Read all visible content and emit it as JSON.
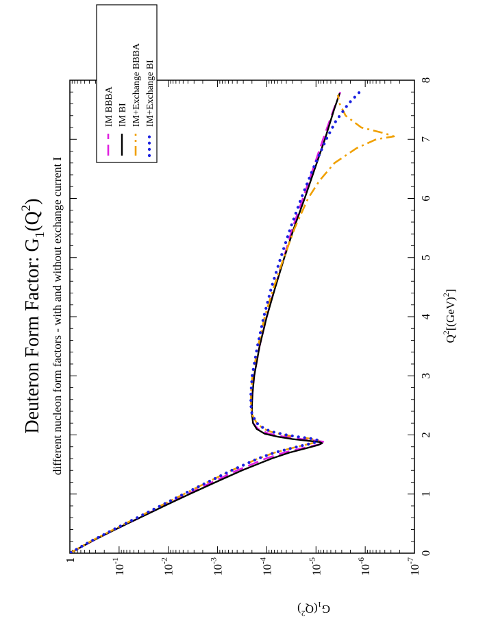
{
  "chart_data": {
    "type": "line",
    "orientation": "rotated-90-ccw",
    "title": "Deuteron Form Factor: G",
    "title_sub": "1",
    "title_tail": "(Q",
    "title_sup": "2",
    "title_end": ")",
    "subtitle": "different nucleon form factors - with and without exchange current I",
    "xlabel": "Q",
    "xlabel_sup": "2",
    "xlabel_tail": "[(GeV)",
    "xlabel_sup2": "2",
    "xlabel_end": "]",
    "ylabel": "G",
    "ylabel_sub": "1",
    "ylabel_tail": "(Q",
    "ylabel_sup": "2",
    "ylabel_end": ")",
    "xlim": [
      0,
      8
    ],
    "ylim": [
      1e-07,
      1
    ],
    "yscale": "log",
    "x_ticks": [
      0,
      1,
      2,
      3,
      4,
      5,
      6,
      7,
      8
    ],
    "x_tick_labels": [
      "0",
      "1",
      "2",
      "3",
      "4",
      "5",
      "6",
      "7",
      "8"
    ],
    "y_ticks": [
      {
        "value": 1e-07,
        "base": "10",
        "exp": "-7"
      },
      {
        "value": 1e-06,
        "base": "10",
        "exp": "-6"
      },
      {
        "value": 1e-05,
        "base": "10",
        "exp": "-5"
      },
      {
        "value": 0.0001,
        "base": "10",
        "exp": "-4"
      },
      {
        "value": 0.001,
        "base": "10",
        "exp": "-3"
      },
      {
        "value": 0.01,
        "base": "10",
        "exp": "-2"
      },
      {
        "value": 0.1,
        "base": "10",
        "exp": "-1"
      },
      {
        "value": 1,
        "base": "1",
        "exp": ""
      }
    ],
    "grid": false,
    "legend_position": "top-left",
    "series": [
      {
        "name": "IM BBBA",
        "color": "#e020e0",
        "dash": "long-dash",
        "x": [
          0.01,
          0.1,
          0.2,
          0.3,
          0.4,
          0.5,
          0.6,
          0.8,
          1.0,
          1.2,
          1.4,
          1.6,
          1.7,
          1.78,
          1.84,
          1.88,
          1.9,
          1.93,
          1.97,
          2.02,
          2.1,
          2.2,
          2.35,
          2.5,
          2.7,
          3.0,
          3.5,
          4.0,
          4.5,
          5.0,
          5.5,
          6.0,
          6.5,
          7.0,
          7.5,
          7.8
        ],
        "y": [
          0.95,
          0.6,
          0.36,
          0.21,
          0.12,
          0.068,
          0.038,
          0.0125,
          0.004,
          0.0013,
          0.0004,
          0.000105,
          4.5e-05,
          1.8e-05,
          8.5e-06,
          6.5e-06,
          9.5e-06,
          2e-05,
          4.5e-05,
          9e-05,
          0.00015,
          0.00019,
          0.0002,
          0.0002,
          0.000195,
          0.00018,
          0.00014,
          0.0001,
          6.8e-05,
          4.5e-05,
          3e-05,
          1.85e-05,
          1.15e-05,
          7.2e-06,
          4.4e-06,
          3.2e-06
        ]
      },
      {
        "name": "IM BI",
        "color": "#000000",
        "dash": "solid",
        "x": [
          0.01,
          0.1,
          0.2,
          0.3,
          0.4,
          0.5,
          0.6,
          0.8,
          1.0,
          1.2,
          1.4,
          1.6,
          1.7,
          1.78,
          1.83,
          1.86,
          1.88,
          1.9,
          1.93,
          1.97,
          2.02,
          2.1,
          2.2,
          2.35,
          2.5,
          2.7,
          3.0,
          3.5,
          4.0,
          4.5,
          5.0,
          5.5,
          6.0,
          6.5,
          7.0,
          7.5,
          7.78
        ],
        "y": [
          0.95,
          0.6,
          0.36,
          0.21,
          0.12,
          0.068,
          0.038,
          0.012,
          0.0037,
          0.0011,
          0.00032,
          8e-05,
          3.5e-05,
          1.5e-05,
          9e-06,
          7.5e-06,
          8.5e-06,
          1.4e-05,
          3e-05,
          6e-05,
          0.00011,
          0.00016,
          0.00019,
          0.0002,
          0.0002,
          0.000195,
          0.00018,
          0.00014,
          0.0001,
          6.7e-05,
          4.4e-05,
          2.8e-05,
          1.7e-05,
          1.06e-05,
          6.6e-06,
          4.3e-06,
          3.3e-06
        ]
      },
      {
        "name": "IM+Exchange BBBA",
        "color": "#f0a000",
        "dash": "dash-dot",
        "x": [
          0.01,
          0.1,
          0.2,
          0.3,
          0.4,
          0.5,
          0.6,
          0.8,
          1.0,
          1.2,
          1.4,
          1.6,
          1.7,
          1.78,
          1.84,
          1.88,
          1.91,
          1.94,
          1.97,
          2.0,
          2.05,
          2.1,
          2.2,
          2.35,
          2.5,
          2.7,
          3.0,
          3.5,
          4.0,
          4.5,
          5.0,
          5.5,
          6.0,
          6.3,
          6.6,
          6.85,
          7.0,
          7.05,
          7.1,
          7.2,
          7.4,
          7.6,
          7.75
        ],
        "y": [
          0.95,
          0.62,
          0.38,
          0.22,
          0.13,
          0.075,
          0.043,
          0.0145,
          0.0048,
          0.0016,
          0.00052,
          0.00015,
          7e-05,
          3e-05,
          1.5e-05,
          9.5e-06,
          9e-06,
          1.4e-05,
          2.6e-05,
          4.5e-05,
          8e-05,
          0.000115,
          0.00016,
          0.0002,
          0.00021,
          0.00021,
          0.000195,
          0.00015,
          0.00011,
          7.2e-05,
          4.5e-05,
          2.7e-05,
          1.45e-05,
          8.5e-06,
          4.2e-06,
          1.5e-06,
          6e-07,
          2.6e-07,
          4e-07,
          1.2e-06,
          2.5e-06,
          3.3e-06,
          3.6e-06
        ]
      },
      {
        "name": "IM+Exchange BI",
        "color": "#1a20e0",
        "dash": "dotted",
        "x": [
          0.01,
          0.1,
          0.2,
          0.3,
          0.4,
          0.5,
          0.6,
          0.8,
          1.0,
          1.2,
          1.4,
          1.6,
          1.7,
          1.78,
          1.84,
          1.88,
          1.91,
          1.94,
          1.97,
          2.0,
          2.05,
          2.1,
          2.2,
          2.35,
          2.5,
          2.7,
          3.0,
          3.5,
          4.0,
          4.5,
          5.0,
          5.5,
          6.0,
          6.5,
          7.0,
          7.3,
          7.6,
          7.8
        ],
        "y": [
          0.95,
          0.62,
          0.38,
          0.22,
          0.13,
          0.075,
          0.043,
          0.0145,
          0.0049,
          0.0016,
          0.00052,
          0.00015,
          7e-05,
          3e-05,
          1.5e-05,
          9.5e-06,
          9e-06,
          1.3e-05,
          2.4e-05,
          4e-05,
          7.5e-05,
          0.00011,
          0.00016,
          0.0002,
          0.00021,
          0.00021,
          0.000198,
          0.000155,
          0.000115,
          8e-05,
          5.2e-05,
          3.3e-05,
          2e-05,
          1.15e-05,
          6.2e-06,
          4e-06,
          2.2e-06,
          1.3e-06
        ]
      }
    ]
  }
}
